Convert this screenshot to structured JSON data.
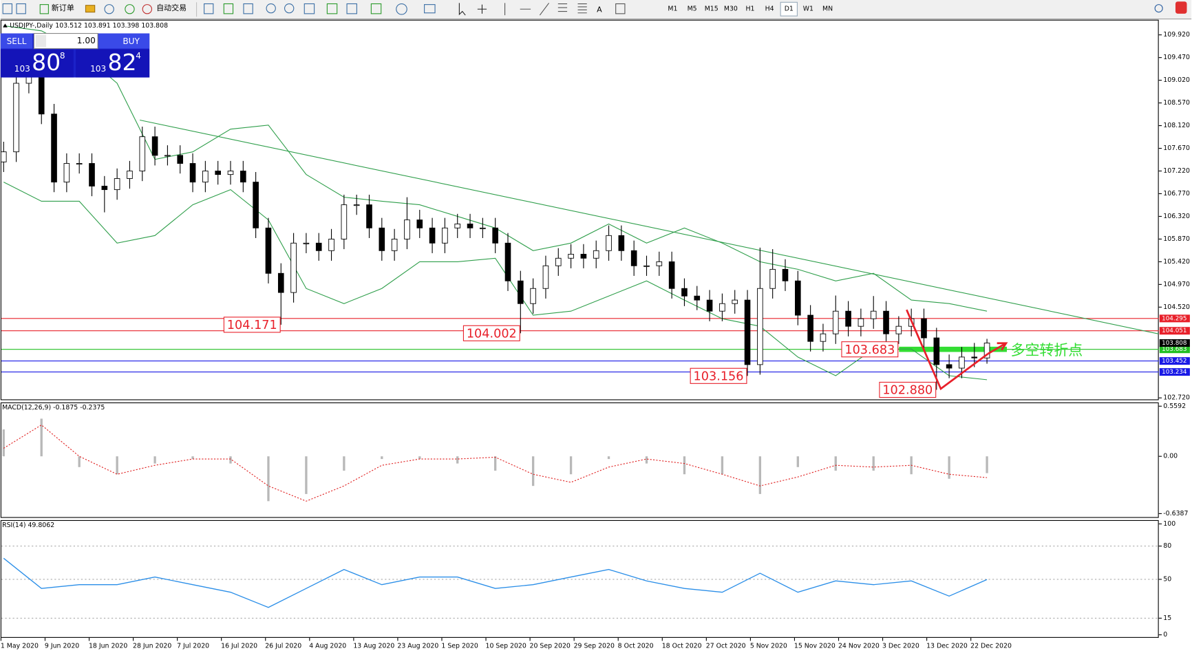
{
  "toolbar": {
    "new_order": "新订单",
    "auto_trading": "自动交易",
    "timeframes": [
      "M1",
      "M5",
      "M15",
      "M30",
      "H1",
      "H4",
      "D1",
      "W1",
      "MN"
    ],
    "active_timeframe": "D1"
  },
  "trade_panel": {
    "sell": "SELL",
    "buy": "BUY",
    "lots": "1.00",
    "bid_big": "103",
    "bid_main": "80",
    "bid_small": "8",
    "ask_big": "103",
    "ask_main": "82",
    "ask_small": "4"
  },
  "chart_data": {
    "type": "candlestick",
    "title": "USDJPY-,Daily",
    "subtitle": "103.512 103.891 103.398 103.808",
    "ylim": [
      102.675,
      110.22
    ],
    "yticks": [
      {
        "value": 109.92,
        "label": "109.920"
      },
      {
        "value": 109.47,
        "label": "109.470"
      },
      {
        "value": 109.02,
        "label": "109.020"
      },
      {
        "value": 108.57,
        "label": "108.570"
      },
      {
        "value": 108.12,
        "label": "108.120"
      },
      {
        "value": 107.67,
        "label": "107.670"
      },
      {
        "value": 107.22,
        "label": "107.220"
      },
      {
        "value": 106.77,
        "label": "106.770"
      },
      {
        "value": 106.32,
        "label": "106.320"
      },
      {
        "value": 105.87,
        "label": "105.870"
      },
      {
        "value": 105.42,
        "label": "105.420"
      },
      {
        "value": 104.97,
        "label": "104.970"
      },
      {
        "value": 104.52,
        "label": "104.520"
      },
      {
        "value": 102.72,
        "label": "102.720"
      }
    ],
    "x_labels": [
      "1 May 2020",
      "9 Jun 2020",
      "18 Jun 2020",
      "28 Jun 2020",
      "7 Jul 2020",
      "16 Jul 2020",
      "26 Jul 2020",
      "4 Aug 2020",
      "13 Aug 2020",
      "23 Aug 2020",
      "1 Sep 2020",
      "10 Sep 2020",
      "20 Sep 2020",
      "29 Sep 2020",
      "8 Oct 2020",
      "18 Oct 2020",
      "27 Oct 2020",
      "5 Nov 2020",
      "15 Nov 2020",
      "24 Nov 2020",
      "3 Dec 2020",
      "13 Dec 2020",
      "22 Dec 2020"
    ],
    "open": [
      107.4,
      107.6,
      108.96,
      109.11,
      108.35,
      107.0,
      107.37,
      107.37,
      106.92,
      106.85,
      107.07,
      107.22,
      107.9,
      107.53,
      107.53,
      107.37,
      107.0,
      107.22,
      107.15,
      107.22,
      107.0,
      106.09,
      105.19,
      104.81,
      105.79,
      105.79,
      105.64,
      105.87,
      106.55,
      106.55,
      106.09,
      105.64,
      105.87,
      106.25,
      106.09,
      105.79,
      106.09,
      106.17,
      106.09,
      106.09,
      105.79,
      105.04,
      104.59,
      104.89,
      105.34,
      105.49,
      105.57,
      105.49,
      105.64,
      105.94,
      105.64,
      105.34,
      105.34,
      105.42,
      104.89,
      104.74,
      104.66,
      104.44,
      104.59,
      104.66,
      103.38,
      104.89,
      105.27,
      105.04,
      104.36,
      103.84,
      103.99,
      104.44,
      104.14,
      104.29,
      104.44,
      103.99,
      104.14,
      104.29,
      103.91,
      103.38,
      103.31,
      103.53,
      103.512
    ],
    "high": [
      107.8,
      109.16,
      109.31,
      109.31,
      108.55,
      107.57,
      107.57,
      107.57,
      107.12,
      107.27,
      107.42,
      108.1,
      108.1,
      107.73,
      107.73,
      107.57,
      107.42,
      107.42,
      107.42,
      107.42,
      107.2,
      106.29,
      105.39,
      105.99,
      105.99,
      105.99,
      106.07,
      106.75,
      106.75,
      106.75,
      106.29,
      106.07,
      106.7,
      106.45,
      106.29,
      106.29,
      106.37,
      106.37,
      106.29,
      106.29,
      105.99,
      105.24,
      105.09,
      105.54,
      105.69,
      105.77,
      105.77,
      105.84,
      106.14,
      106.14,
      105.84,
      105.54,
      105.62,
      105.62,
      105.09,
      104.94,
      104.86,
      104.79,
      104.86,
      104.86,
      105.7,
      105.67,
      105.47,
      105.24,
      104.56,
      104.19,
      104.75,
      104.64,
      104.49,
      104.74,
      104.64,
      104.34,
      104.49,
      104.49,
      104.11,
      103.58,
      103.73,
      103.81,
      103.891
    ],
    "low": [
      107.2,
      107.4,
      108.76,
      108.15,
      106.8,
      106.8,
      107.17,
      106.72,
      106.4,
      106.65,
      106.87,
      107.02,
      107.33,
      107.33,
      107.17,
      106.8,
      106.8,
      106.95,
      106.95,
      106.8,
      105.89,
      104.99,
      104.171,
      104.61,
      105.59,
      105.44,
      105.44,
      105.67,
      106.35,
      105.89,
      105.44,
      105.44,
      105.67,
      105.89,
      105.59,
      105.59,
      105.89,
      105.89,
      105.89,
      105.59,
      104.84,
      104.002,
      104.39,
      104.69,
      105.14,
      105.29,
      105.29,
      105.29,
      105.44,
      105.44,
      105.14,
      105.14,
      105.14,
      104.69,
      104.54,
      104.46,
      104.24,
      104.24,
      104.39,
      103.156,
      103.18,
      104.69,
      104.84,
      104.16,
      103.64,
      103.64,
      103.79,
      103.94,
      103.94,
      104.09,
      103.79,
      103.79,
      103.94,
      103.71,
      102.88,
      103.11,
      103.11,
      103.33,
      103.398
    ],
    "close": [
      107.6,
      108.96,
      109.11,
      108.35,
      107.0,
      107.37,
      107.37,
      106.92,
      106.85,
      107.07,
      107.22,
      107.9,
      107.53,
      107.53,
      107.37,
      107.0,
      107.22,
      107.15,
      107.22,
      107.0,
      106.09,
      105.19,
      104.81,
      105.79,
      105.79,
      105.64,
      105.87,
      106.55,
      106.55,
      106.09,
      105.64,
      105.87,
      106.25,
      106.09,
      105.79,
      106.09,
      106.17,
      106.09,
      106.09,
      105.79,
      105.04,
      104.59,
      104.89,
      105.34,
      105.49,
      105.57,
      105.49,
      105.64,
      105.94,
      105.64,
      105.34,
      105.34,
      105.42,
      104.89,
      104.74,
      104.66,
      104.44,
      104.59,
      104.66,
      103.38,
      104.89,
      105.27,
      105.04,
      104.36,
      103.84,
      103.99,
      104.44,
      104.14,
      104.29,
      104.44,
      103.99,
      104.14,
      104.29,
      103.91,
      103.38,
      103.31,
      103.53,
      103.512,
      103.808
    ],
    "trendline": {
      "x": [
        10.8,
        91.6
      ],
      "y": [
        108.23,
        103.99
      ],
      "color": "#2e9e4a"
    },
    "sample_index": [
      0,
      3,
      6,
      9,
      12,
      15,
      18,
      21,
      24,
      27,
      30,
      33,
      36,
      39,
      42,
      45,
      48,
      51,
      54,
      57,
      60,
      63,
      66,
      69,
      72,
      75,
      78
    ],
    "bollinger": {
      "color": "#2e9e4a",
      "upper": [
        110.1,
        110.0,
        109.6,
        108.96,
        107.45,
        107.6,
        108.05,
        108.13,
        107.15,
        106.7,
        106.62,
        106.55,
        106.32,
        106.09,
        105.64,
        105.79,
        106.17,
        105.79,
        106.09,
        105.79,
        105.42,
        105.27,
        105.04,
        105.19,
        104.66,
        104.59,
        104.44
      ],
      "lower": [
        107.0,
        106.62,
        106.62,
        105.79,
        105.94,
        106.55,
        106.85,
        106.25,
        104.89,
        104.59,
        104.89,
        105.42,
        105.42,
        105.49,
        104.36,
        104.44,
        104.74,
        105.04,
        104.66,
        104.29,
        104.14,
        103.53,
        103.16,
        103.69,
        103.69,
        103.16,
        103.08
      ]
    },
    "levels": [
      104.295,
      104.051,
      103.683,
      103.452,
      103.234
    ],
    "level_colors": [
      "#e8202a",
      "#e8202a",
      "#22c022",
      "#1a1ae6",
      "#1a1ae6"
    ],
    "annotations": [
      {
        "value": 104.171,
        "label": "104.171",
        "at": 22
      },
      {
        "value": 104.002,
        "label": "104.002",
        "at": 41
      },
      {
        "value": 103.156,
        "label": "103.156",
        "at": 59
      },
      {
        "value": 102.88,
        "label": "102.880",
        "at": 74
      },
      {
        "value": 103.683,
        "label": "103.683",
        "at": 71
      }
    ],
    "callout": "多空转折点",
    "macd": {
      "title": "MACD(12,26,9) -0.1875 -0.2375",
      "ylim": [
        -0.686,
        0.601
      ],
      "yticks": [
        0.5592,
        {
          "value": 0,
          "label": "0.00"
        },
        -0.6387
      ],
      "histogram": [
        0.3,
        0.42,
        -0.12,
        -0.2,
        -0.08,
        -0.03,
        -0.08,
        -0.5,
        -0.42,
        -0.16,
        -0.03,
        -0.03,
        -0.08,
        -0.16,
        -0.33,
        -0.2,
        -0.03,
        -0.08,
        -0.2,
        -0.2,
        -0.42,
        -0.12,
        -0.16,
        -0.16,
        -0.2,
        -0.25,
        -0.1875
      ],
      "signal": [
        0.09,
        0.35,
        0.0,
        -0.2,
        -0.1,
        -0.03,
        -0.03,
        -0.33,
        -0.5,
        -0.33,
        -0.1,
        -0.03,
        -0.03,
        -0.01,
        -0.2,
        -0.29,
        -0.12,
        -0.03,
        -0.08,
        -0.2,
        -0.33,
        -0.23,
        -0.1,
        -0.12,
        -0.1,
        -0.2,
        -0.2375
      ],
      "histogram_color": "#b8b8b8",
      "signal_color": "#e02020"
    },
    "rsi": {
      "title": "RSI(14) 49.8062",
      "ylim": [
        -2.7,
        102.7
      ],
      "yticks": [
        100,
        80,
        50,
        15,
        0
      ],
      "guide_levels": [
        80,
        50,
        15
      ],
      "color": "#2a8ee8",
      "values": [
        69,
        41.8,
        45.2,
        45.2,
        52.1,
        45.2,
        38.4,
        24.7,
        41.8,
        58.9,
        45.2,
        52.1,
        52.1,
        41.8,
        45.2,
        52.1,
        58.9,
        48.6,
        41.8,
        38.4,
        55.5,
        38.4,
        48.6,
        45.2,
        48.6,
        34.9,
        49.8062
      ]
    }
  }
}
